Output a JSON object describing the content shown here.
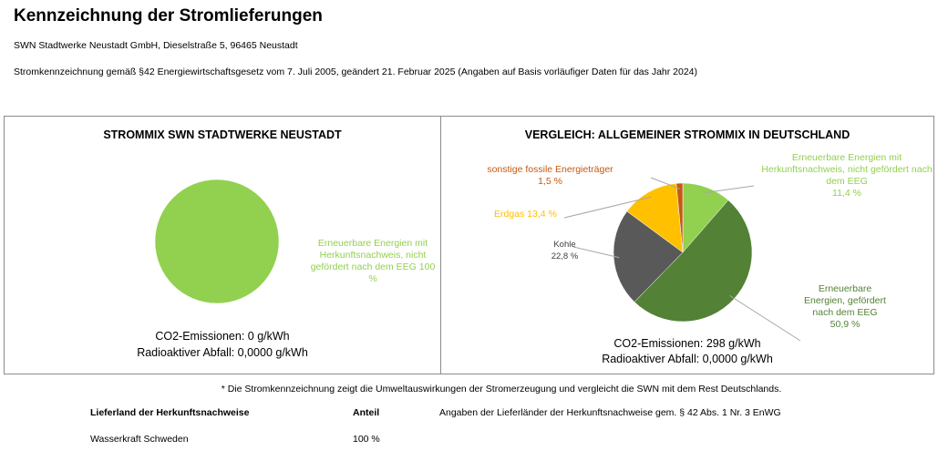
{
  "header": {
    "title": "Kennzeichnung der Stromlieferungen",
    "company": "SWN Stadtwerke Neustadt GmbH, Dieselstraße 5, 96465 Neustadt",
    "legal": "Stromkennzeichnung gemäß §42 Energiewirtschaftsgesetz vom 7. Juli 2005, geändert 21. Februar 2025 (Angaben auf Basis vorläufiger Daten für das Jahr 2024)"
  },
  "chart_data": [
    {
      "type": "pie",
      "title": "STROMMIX SWN STADTWERKE NEUSTADT",
      "categories": [
        "Erneuerbare Energien mit Herkunftsnachweis, nicht gefördert nach dem EEG"
      ],
      "values": [
        100
      ],
      "labels": [
        "Erneuerbare Energien mit Herkunftsnachweis, nicht gefördert nach dem EEG 100 %"
      ],
      "colors": [
        "#92d050"
      ],
      "co2": "CO2-Emissionen: 0 g/kWh",
      "waste": "Radioaktiver Abfall: 0,0000 g/kWh"
    },
    {
      "type": "pie",
      "title": "VERGLEICH: ALLGEMEINER STROMMIX IN DEUTSCHLAND",
      "categories": [
        "Erneuerbare Energien mit Herkunftsnachweis, nicht gefördert nach dem EEG",
        "Erneuerbare Energien, gefördert nach dem EEG",
        "Kohle",
        "Erdgas",
        "sonstige fossile Energieträger"
      ],
      "values": [
        11.4,
        50.9,
        22.8,
        13.4,
        1.5
      ],
      "colors": [
        "#92d050",
        "#538135",
        "#595959",
        "#ffc000",
        "#c55a11"
      ],
      "labels": [
        {
          "text": "Erneuerbare Energien mit Herkunftsnachweis, nicht gefördert nach dem EEG",
          "pct": "11,4 %"
        },
        {
          "text": "Erneuerbare Energien, gefördert nach dem EEG",
          "pct": "50,9 %"
        },
        {
          "text": "Kohle",
          "pct": "22,8 %"
        },
        {
          "text": "Erdgas 13,4 %",
          "pct": ""
        },
        {
          "text": "sonstige fossile Energieträger",
          "pct": "1,5 %"
        }
      ],
      "co2": "CO2-Emissionen: 298 g/kWh",
      "waste": "Radioaktiver Abfall: 0,0000 g/kWh"
    }
  ],
  "footnote": "* Die Stromkennzeichnung zeigt die Umweltauswirkungen der Stromerzeugung und vergleicht die SWN mit dem Rest Deutschlands.",
  "table": {
    "col_country": "Lieferland der Herkunftsnachweise",
    "col_share": "Anteil",
    "note": "Angaben der Lieferländer der Herkunftsnachweise gem. § 42 Abs. 1 Nr. 3 EnWG",
    "rows": [
      {
        "country": "Wasserkraft Schweden",
        "share": "100 %"
      }
    ]
  }
}
